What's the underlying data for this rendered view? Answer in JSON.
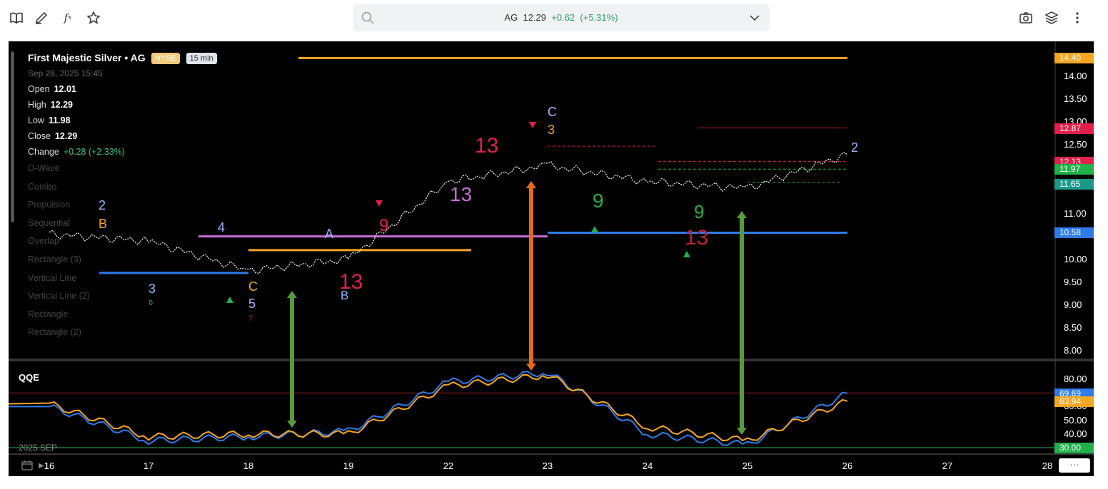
{
  "header": {
    "symbol": "AG",
    "price": "12.29",
    "change": "+0.62",
    "change_pct": "(+5.31%)"
  },
  "legend": {
    "title": "First Majestic Silver • AG",
    "exchange": "NYSE",
    "timeframe": "15 min",
    "datetime": "Sep 26, 2025 15:45",
    "open_label": "Open",
    "open": "12.01",
    "high_label": "High",
    "high": "12.29",
    "low_label": "Low",
    "low": "11.98",
    "close_label": "Close",
    "close": "12.29",
    "change_label": "Change",
    "change": "+0.28 (+2.33%)",
    "indicators": [
      "D-Wave",
      "Combo",
      "Propulsion",
      "Sequential",
      "Overlap",
      "Rectangle (3)",
      "Vertical Line",
      "Vertical Line (2)",
      "Rectangle",
      "Rectangle (2)"
    ]
  },
  "price_axis": {
    "ticks": [
      "14.00",
      "13.50",
      "13.00",
      "12.50",
      "11.00",
      "10.00",
      "9.50",
      "9.00",
      "8.50",
      "8.00"
    ],
    "tick_values": [
      14.0,
      13.5,
      13.0,
      12.5,
      11.0,
      10.0,
      9.5,
      9.0,
      8.5,
      8.0
    ],
    "tags": [
      {
        "label": "14.40",
        "value": 14.4,
        "color": "#f5a623"
      },
      {
        "label": "12.87",
        "value": 12.87,
        "color": "#e0204a"
      },
      {
        "label": "12.13",
        "value": 12.13,
        "color": "#e0204a"
      },
      {
        "label": "11.97",
        "value": 11.97,
        "color": "#22b04a"
      },
      {
        "label": "11.65",
        "value": 11.65,
        "color": "#1a9a8a"
      },
      {
        "label": "10.58",
        "value": 10.58,
        "color": "#2f7be8"
      }
    ]
  },
  "qqe": {
    "title": "QQE",
    "ticks": [
      "80.00",
      "60.00",
      "50.00",
      "40.00"
    ],
    "tick_values": [
      80,
      60,
      50,
      40
    ],
    "tags": [
      {
        "label": "69.69",
        "value": 69.69,
        "color": "#2f7be8"
      },
      {
        "label": "63.94",
        "value": 63.94,
        "color": "#f5a623"
      },
      {
        "label": "30.00",
        "value": 30,
        "color": "#22b04a"
      }
    ],
    "upper_level": 70,
    "lower_level": 30
  },
  "x_axis": {
    "labels": [
      "16",
      "17",
      "18",
      "19",
      "22",
      "23",
      "24",
      "25",
      "26",
      "27",
      "28"
    ],
    "month_label": "2025 SEP",
    "more_label": "···"
  },
  "chart_data": [
    {
      "type": "line",
      "title": "First Majestic Silver • AG",
      "ylim": [
        8.0,
        14.5
      ],
      "categories": [
        "16",
        "17",
        "18",
        "19",
        "22",
        "23",
        "24",
        "25",
        "26"
      ],
      "series": [
        {
          "values": [
            10.55,
            10.4,
            9.75,
            10.0,
            11.7,
            12.05,
            11.7,
            11.55,
            12.29
          ]
        }
      ],
      "horizontal_lines": [
        {
          "value": 14.4,
          "color": "#f5a623",
          "x_start": "18.5",
          "x_end": "26"
        },
        {
          "value": 10.58,
          "color": "#2f7be8",
          "x_start": "23",
          "x_end": "26"
        },
        {
          "value": 10.5,
          "color": "#c86bd6",
          "x_start": "17.5",
          "x_end": "23"
        },
        {
          "value": 10.2,
          "color": "#f5a623",
          "x_start": "18",
          "x_end": "20"
        },
        {
          "value": 9.7,
          "color": "#2f7be8",
          "x_start": "16.5",
          "x_end": "18"
        }
      ],
      "annotations": [
        "2",
        "B",
        "3",
        "6",
        "4",
        "C",
        "5",
        "7",
        "A",
        "B",
        "9",
        "13",
        "C",
        "3",
        "13",
        "9",
        "13",
        "2",
        "9",
        "13"
      ]
    },
    {
      "type": "line",
      "title": "QQE",
      "ylim": [
        25,
        90
      ],
      "categories": [
        "16",
        "17",
        "18",
        "19",
        "22",
        "23",
        "24",
        "25",
        "26"
      ],
      "series": [
        {
          "values": [
            60,
            35,
            38,
            42,
            78,
            85,
            40,
            32,
            69.69
          ],
          "color": "#2f7be8"
        },
        {
          "values": [
            62,
            38,
            40,
            40,
            75,
            83,
            45,
            35,
            63.94
          ],
          "color": "#f5a623"
        }
      ]
    }
  ]
}
